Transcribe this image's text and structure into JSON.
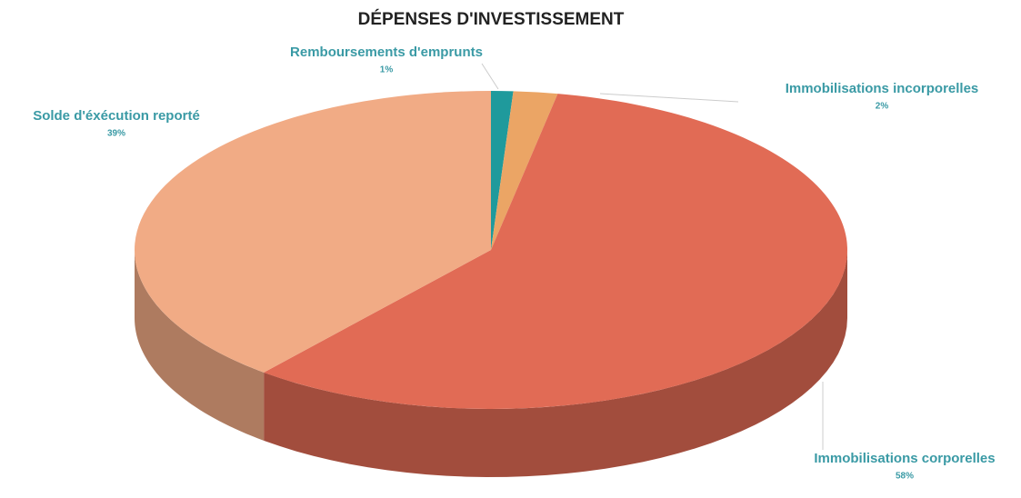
{
  "chart_data": {
    "type": "pie",
    "title": "DÉPENSES D'INVESTISSEMENT",
    "categories": [
      "Remboursements d'emprunts",
      "Immobilisations incorporelles",
      "Immobilisations corporelles",
      "Solde d'éxécution reporté"
    ],
    "values": [
      1,
      2,
      58,
      39
    ],
    "value_labels": [
      "1%",
      "2%",
      "58%",
      "39%"
    ],
    "colors": [
      "#1f9a9c",
      "#eba565",
      "#e16b55",
      "#f1ab85"
    ]
  }
}
